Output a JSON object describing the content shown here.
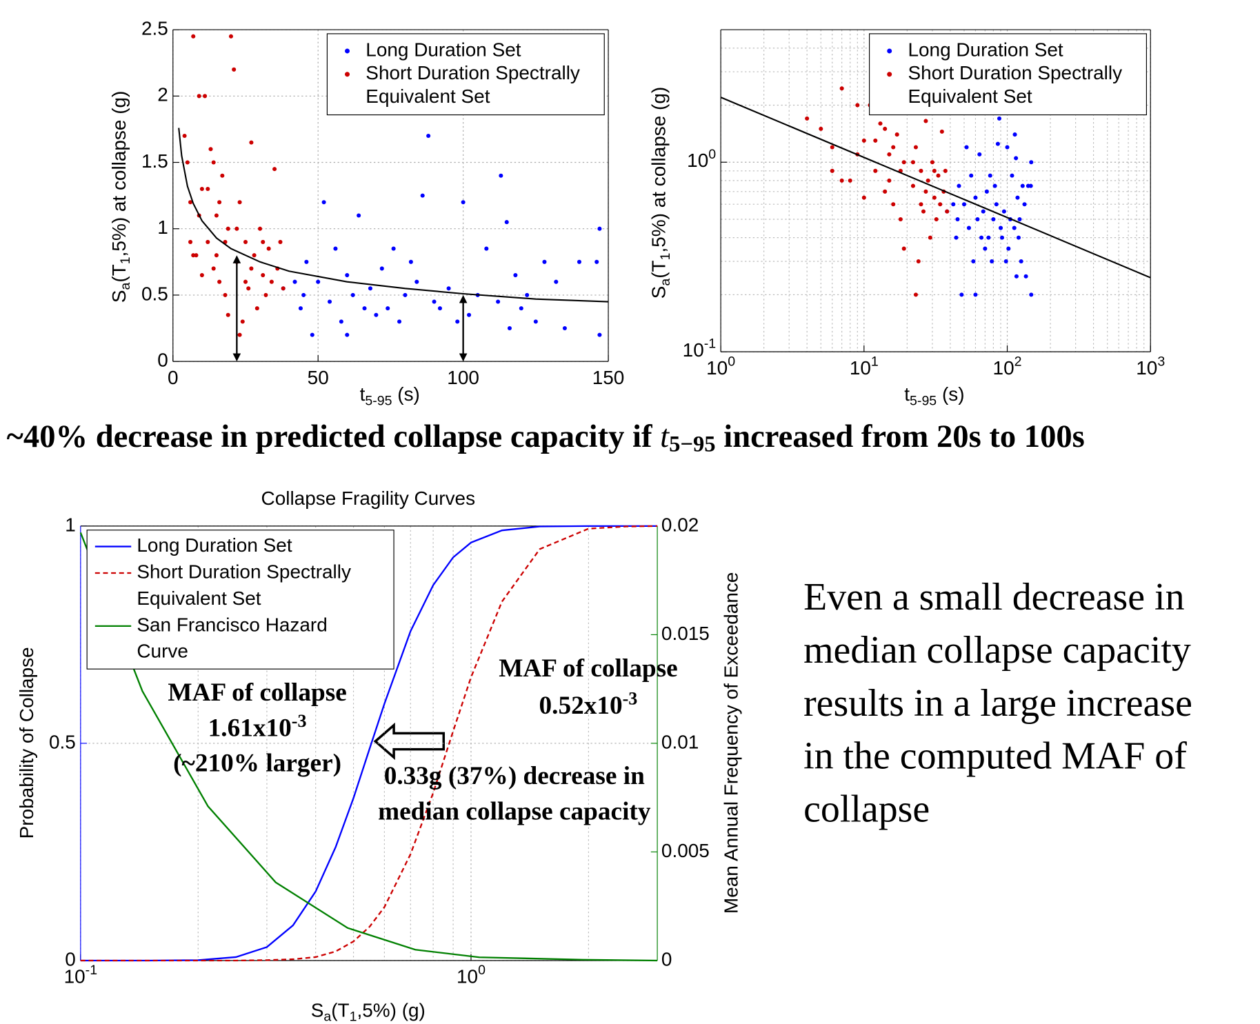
{
  "headline": [
    "~40% decrease in predicted collapse capacity if ",
    "t",
    "5−95",
    " increased from 20s to 100s"
  ],
  "body_text": [
    "Even a small decrease in",
    "median collapse capacity",
    "results in a large increase",
    "in the computed MAF of",
    "collapse"
  ],
  "chart_data": [
    {
      "type": "scatter",
      "xlabel": [
        "t",
        "5-95",
        " (s)"
      ],
      "ylabel": [
        "S",
        "a",
        "(T",
        "1",
        ",5%) at collapse (g)"
      ],
      "xlim": [
        0,
        150
      ],
      "ylim": [
        0,
        2.5
      ],
      "xticks": [
        0,
        50,
        100,
        150
      ],
      "yticks": [
        0,
        0.5,
        1,
        1.5,
        2,
        2.5
      ],
      "grid": true,
      "legend": "upper right",
      "series": [
        {
          "name": "Long Duration Set",
          "color": "#0000ff",
          "x": [
            38,
            42,
            44,
            46,
            48,
            50,
            52,
            54,
            56,
            58,
            60,
            62,
            64,
            66,
            68,
            70,
            72,
            74,
            76,
            78,
            80,
            82,
            84,
            86,
            88,
            90,
            92,
            95,
            98,
            100,
            102,
            105,
            108,
            112,
            115,
            116,
            118,
            120,
            122,
            125,
            128,
            132,
            135,
            140,
            146,
            147,
            147,
            113,
            60,
            45
          ],
          "values": [
            0.55,
            0.6,
            0.4,
            0.75,
            0.2,
            0.6,
            1.2,
            0.45,
            0.85,
            0.3,
            0.65,
            0.5,
            1.1,
            0.4,
            0.55,
            0.35,
            0.7,
            0.4,
            0.85,
            0.3,
            0.5,
            0.75,
            0.6,
            1.25,
            1.7,
            0.45,
            0.4,
            0.55,
            0.3,
            1.2,
            0.35,
            0.5,
            0.85,
            0.45,
            1.05,
            0.25,
            0.65,
            0.4,
            0.5,
            0.3,
            0.75,
            0.6,
            0.25,
            0.75,
            0.75,
            0.2,
            1.0,
            1.4,
            0.2,
            0.5
          ]
        },
        {
          "name": [
            "Short Duration Spectrally",
            "Equivalent Set"
          ],
          "color": "#cc0000",
          "x": [
            4,
            5,
            6,
            7,
            8,
            9,
            10,
            11,
            12,
            13,
            14,
            15,
            16,
            17,
            18,
            19,
            20,
            21,
            22,
            23,
            24,
            25,
            26,
            27,
            28,
            29,
            30,
            31,
            32,
            33,
            34,
            35,
            36,
            37,
            38,
            7,
            10,
            12,
            15,
            18,
            22,
            25,
            6,
            9,
            14,
            19,
            23,
            27,
            31,
            16
          ],
          "values": [
            1.7,
            1.5,
            1.2,
            2.45,
            0.8,
            2.0,
            1.3,
            2.0,
            0.9,
            1.6,
            0.7,
            1.1,
            0.6,
            1.4,
            0.5,
            1.0,
            2.45,
            2.2,
            0.75,
            1.2,
            0.3,
            0.9,
            0.55,
            1.65,
            0.8,
            0.4,
            1.0,
            0.65,
            0.5,
            0.85,
            0.6,
            1.45,
            0.7,
            0.9,
            0.55,
            0.8,
            0.65,
            1.3,
            0.8,
            0.9,
            1.0,
            0.6,
            0.9,
            1.1,
            1.5,
            0.35,
            0.2,
            0.7,
            0.9,
            1.2
          ]
        }
      ],
      "fit": {
        "color": "#000000",
        "x": [
          2,
          3,
          5,
          7,
          10,
          15,
          20,
          30,
          40,
          60,
          80,
          100,
          125,
          150
        ],
        "values": [
          1.76,
          1.55,
          1.32,
          1.19,
          1.06,
          0.93,
          0.85,
          0.75,
          0.68,
          0.6,
          0.55,
          0.51,
          0.47,
          0.45
        ]
      },
      "arrows": {
        "x": [
          22,
          100
        ],
        "values": [
          0.8,
          0.5
        ]
      }
    },
    {
      "type": "scatter",
      "xlog": true,
      "ylog": true,
      "xlabel": [
        "t",
        "5-95",
        " (s)"
      ],
      "ylabel": [
        "S",
        "a",
        "(T",
        "1",
        ",5%) at collapse (g)"
      ],
      "xlim": [
        1,
        1000
      ],
      "ylim": [
        0.1,
        5
      ],
      "xticks": [
        {
          "value": 1,
          "label": [
            "10",
            "0"
          ]
        },
        {
          "value": 10,
          "label": [
            "10",
            "1"
          ]
        },
        {
          "value": 100,
          "label": [
            "10",
            "2"
          ]
        },
        {
          "value": 1000,
          "label": [
            "10",
            "3"
          ]
        }
      ],
      "yticks": [
        {
          "value": 0.1,
          "label": [
            "10",
            "-1"
          ]
        },
        {
          "value": 1,
          "label": [
            "10",
            "0"
          ]
        }
      ],
      "grid": true,
      "legend": "upper right",
      "series": [
        {
          "name": "Long Duration Set",
          "color": "#0000ff",
          "x": [
            38,
            42,
            44,
            46,
            48,
            50,
            52,
            54,
            56,
            58,
            60,
            62,
            64,
            66,
            68,
            70,
            72,
            74,
            76,
            78,
            80,
            82,
            84,
            86,
            88,
            90,
            92,
            95,
            98,
            100,
            102,
            105,
            108,
            112,
            115,
            116,
            118,
            120,
            122,
            125,
            128,
            132,
            135,
            140,
            146,
            147,
            147,
            113,
            60,
            45
          ],
          "values": [
            0.55,
            0.6,
            0.4,
            0.75,
            0.2,
            0.6,
            1.2,
            0.45,
            0.85,
            0.3,
            0.65,
            0.5,
            1.1,
            0.4,
            0.55,
            0.35,
            0.7,
            0.4,
            0.85,
            0.3,
            0.5,
            0.75,
            0.6,
            1.25,
            1.7,
            0.45,
            0.4,
            0.55,
            0.3,
            1.2,
            0.35,
            0.5,
            0.85,
            0.45,
            1.05,
            0.25,
            0.65,
            0.4,
            0.5,
            0.3,
            0.75,
            0.6,
            0.25,
            0.75,
            0.75,
            0.2,
            1.0,
            1.4,
            0.2,
            0.5
          ]
        },
        {
          "name": [
            "Short Duration Spectrally",
            "Equivalent Set"
          ],
          "color": "#cc0000",
          "x": [
            4,
            5,
            6,
            7,
            8,
            9,
            10,
            11,
            12,
            13,
            14,
            15,
            16,
            17,
            18,
            19,
            20,
            21,
            22,
            23,
            24,
            25,
            26,
            27,
            28,
            29,
            30,
            31,
            32,
            33,
            34,
            35,
            36,
            37,
            38,
            7,
            10,
            12,
            15,
            18,
            22,
            25,
            6,
            9,
            14,
            19,
            23,
            27,
            31,
            16
          ],
          "values": [
            1.7,
            1.5,
            1.2,
            2.45,
            0.8,
            2.0,
            1.3,
            2.0,
            0.9,
            1.6,
            0.7,
            1.1,
            0.6,
            1.4,
            0.5,
            1.0,
            2.45,
            2.2,
            0.75,
            1.2,
            0.3,
            0.9,
            0.55,
            1.65,
            0.8,
            0.4,
            1.0,
            0.65,
            0.5,
            0.85,
            0.6,
            1.45,
            0.7,
            0.9,
            0.55,
            0.8,
            0.65,
            1.3,
            0.8,
            0.9,
            1.0,
            0.6,
            0.9,
            1.1,
            1.5,
            0.35,
            0.2,
            0.7,
            0.9,
            1.2
          ]
        }
      ],
      "fit": {
        "color": "#000000",
        "x": [
          1,
          1000
        ],
        "values": [
          2.2,
          0.246
        ]
      }
    },
    {
      "type": "line",
      "xlog": true,
      "title": "Collapse Fragility Curves",
      "xlabel": [
        "S",
        "a",
        "(T",
        "1",
        ",5%) (g)"
      ],
      "ylabel": [
        "Probability of Collapse"
      ],
      "y2label": [
        "Mean Annual Frequency of Exceedance"
      ],
      "xlim": [
        0.1,
        3
      ],
      "ylim": [
        0,
        1
      ],
      "y2lim": [
        0,
        0.02
      ],
      "xticks": [
        {
          "value": 0.1,
          "label": [
            "10",
            "-1"
          ]
        },
        {
          "value": 1,
          "label": [
            "10",
            "0"
          ]
        }
      ],
      "yticks": [
        0,
        0.5,
        1
      ],
      "y2ticks": [
        0,
        0.005,
        0.01,
        0.015,
        0.02
      ],
      "ycolor": "#0000ff",
      "y2color": "#008000",
      "grid": true,
      "legend": "upper left",
      "series": [
        {
          "name": "Long Duration Set",
          "color": "#0000ff",
          "linestyle": "solid",
          "x": [
            0.1,
            0.15,
            0.2,
            0.25,
            0.3,
            0.35,
            0.4,
            0.45,
            0.5,
            0.55,
            0.6,
            0.7,
            0.8,
            0.9,
            1.0,
            1.2,
            1.5,
            2,
            2.5,
            3
          ],
          "values": [
            0,
            0,
            0.001,
            0.008,
            0.031,
            0.081,
            0.159,
            0.261,
            0.374,
            0.488,
            0.591,
            0.758,
            0.864,
            0.928,
            0.962,
            0.99,
            0.999,
            1,
            1,
            1
          ]
        },
        {
          "name": [
            "Short Duration Spectrally",
            "Equivalent Set"
          ],
          "color": "#cc0000",
          "linestyle": "dashed",
          "x": [
            0.1,
            0.15,
            0.2,
            0.25,
            0.3,
            0.35,
            0.4,
            0.45,
            0.5,
            0.55,
            0.6,
            0.7,
            0.8,
            0.9,
            1.0,
            1.2,
            1.5,
            2,
            2.5,
            3
          ],
          "values": [
            0,
            0,
            0,
            0,
            0.001,
            0.003,
            0.008,
            0.021,
            0.044,
            0.078,
            0.123,
            0.245,
            0.386,
            0.528,
            0.652,
            0.826,
            0.947,
            0.994,
            0.999,
            1
          ]
        },
        {
          "name": [
            "San Francisco Hazard",
            "Curve"
          ],
          "color": "#008000",
          "linestyle": "solid",
          "axis": "y2",
          "x": [
            0.1,
            0.144,
            0.212,
            0.316,
            0.483,
            0.72,
            1.05,
            1.93,
            3
          ],
          "values": [
            0.0197,
            0.0124,
            0.0071,
            0.0036,
            0.0015,
            0.0005,
            0.00015,
            4e-05,
            0
          ]
        }
      ],
      "annotations": [
        {
          "color": "#1f3fd0",
          "lines": [
            "MAF of collapse",
            [
              "1.61x10",
              "-3"
            ],
            "(~210% larger)"
          ]
        },
        {
          "color": "#c00000",
          "lines": [
            "MAF of collapse",
            [
              "0.52x10",
              "-3"
            ]
          ]
        },
        {
          "color": "#000000",
          "lines": [
            "0.33g (37%) decrease in",
            "median collapse capacity"
          ]
        }
      ]
    }
  ]
}
